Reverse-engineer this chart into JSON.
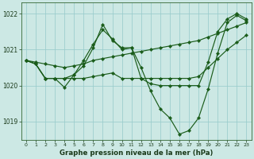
{
  "title": "Graphe pression niveau de la mer (hPa)",
  "background_color": "#cce8e4",
  "grid_color": "#99cccc",
  "line_color": "#1a5c1a",
  "marker_color": "#1a5c1a",
  "xlim": [
    -0.5,
    23.5
  ],
  "ylim": [
    1018.5,
    1022.3
  ],
  "yticks": [
    1019,
    1020,
    1021,
    1022
  ],
  "xticks": [
    0,
    1,
    2,
    3,
    4,
    5,
    6,
    7,
    8,
    9,
    10,
    11,
    12,
    13,
    14,
    15,
    16,
    17,
    18,
    19,
    20,
    21,
    22,
    23
  ],
  "lines": [
    {
      "x": [
        0,
        1,
        2,
        3,
        4,
        5,
        6,
        7,
        8,
        9,
        10,
        11,
        12,
        13,
        14,
        15,
        16,
        17,
        18,
        19,
        20,
        21,
        22,
        23
      ],
      "y": [
        1020.7,
        1020.65,
        1020.6,
        1020.55,
        1020.5,
        1020.55,
        1020.6,
        1020.7,
        1020.75,
        1020.8,
        1020.85,
        1020.9,
        1020.95,
        1021.0,
        1021.05,
        1021.1,
        1021.15,
        1021.2,
        1021.25,
        1021.35,
        1021.45,
        1021.55,
        1021.65,
        1021.75
      ]
    },
    {
      "x": [
        0,
        1,
        2,
        3,
        4,
        5,
        6,
        7,
        8,
        9,
        10,
        11,
        12,
        13,
        14,
        15,
        16,
        17,
        18,
        19,
        20,
        21,
        22,
        23
      ],
      "y": [
        1020.7,
        1020.6,
        1020.2,
        1020.2,
        1019.95,
        1020.3,
        1020.7,
        1021.15,
        1021.55,
        1021.3,
        1021.0,
        1021.05,
        1020.5,
        1019.85,
        1019.35,
        1019.1,
        1018.65,
        1018.75,
        1019.1,
        1019.9,
        1020.9,
        1021.75,
        1021.95,
        1021.8
      ]
    },
    {
      "x": [
        0,
        1,
        2,
        3,
        4,
        5,
        6,
        7,
        8,
        9,
        10,
        11,
        12,
        13,
        14,
        15,
        16,
        17,
        18,
        19,
        20,
        21,
        22,
        23
      ],
      "y": [
        1020.7,
        1020.6,
        1020.2,
        1020.2,
        1020.2,
        1020.3,
        1020.55,
        1021.05,
        1021.7,
        1021.25,
        1021.05,
        1021.05,
        1020.2,
        1020.05,
        1020.0,
        1020.0,
        1020.0,
        1020.0,
        1020.0,
        1020.65,
        1021.5,
        1021.85,
        1022.0,
        1021.85
      ]
    },
    {
      "x": [
        0,
        1,
        2,
        3,
        4,
        5,
        6,
        7,
        8,
        9,
        10,
        11,
        12,
        13,
        14,
        15,
        16,
        17,
        18,
        19,
        20,
        21,
        22,
        23
      ],
      "y": [
        1020.7,
        1020.6,
        1020.2,
        1020.2,
        1020.2,
        1020.2,
        1020.2,
        1020.25,
        1020.3,
        1020.35,
        1020.2,
        1020.2,
        1020.2,
        1020.2,
        1020.2,
        1020.2,
        1020.2,
        1020.2,
        1020.25,
        1020.5,
        1020.75,
        1021.0,
        1021.2,
        1021.4
      ]
    }
  ]
}
